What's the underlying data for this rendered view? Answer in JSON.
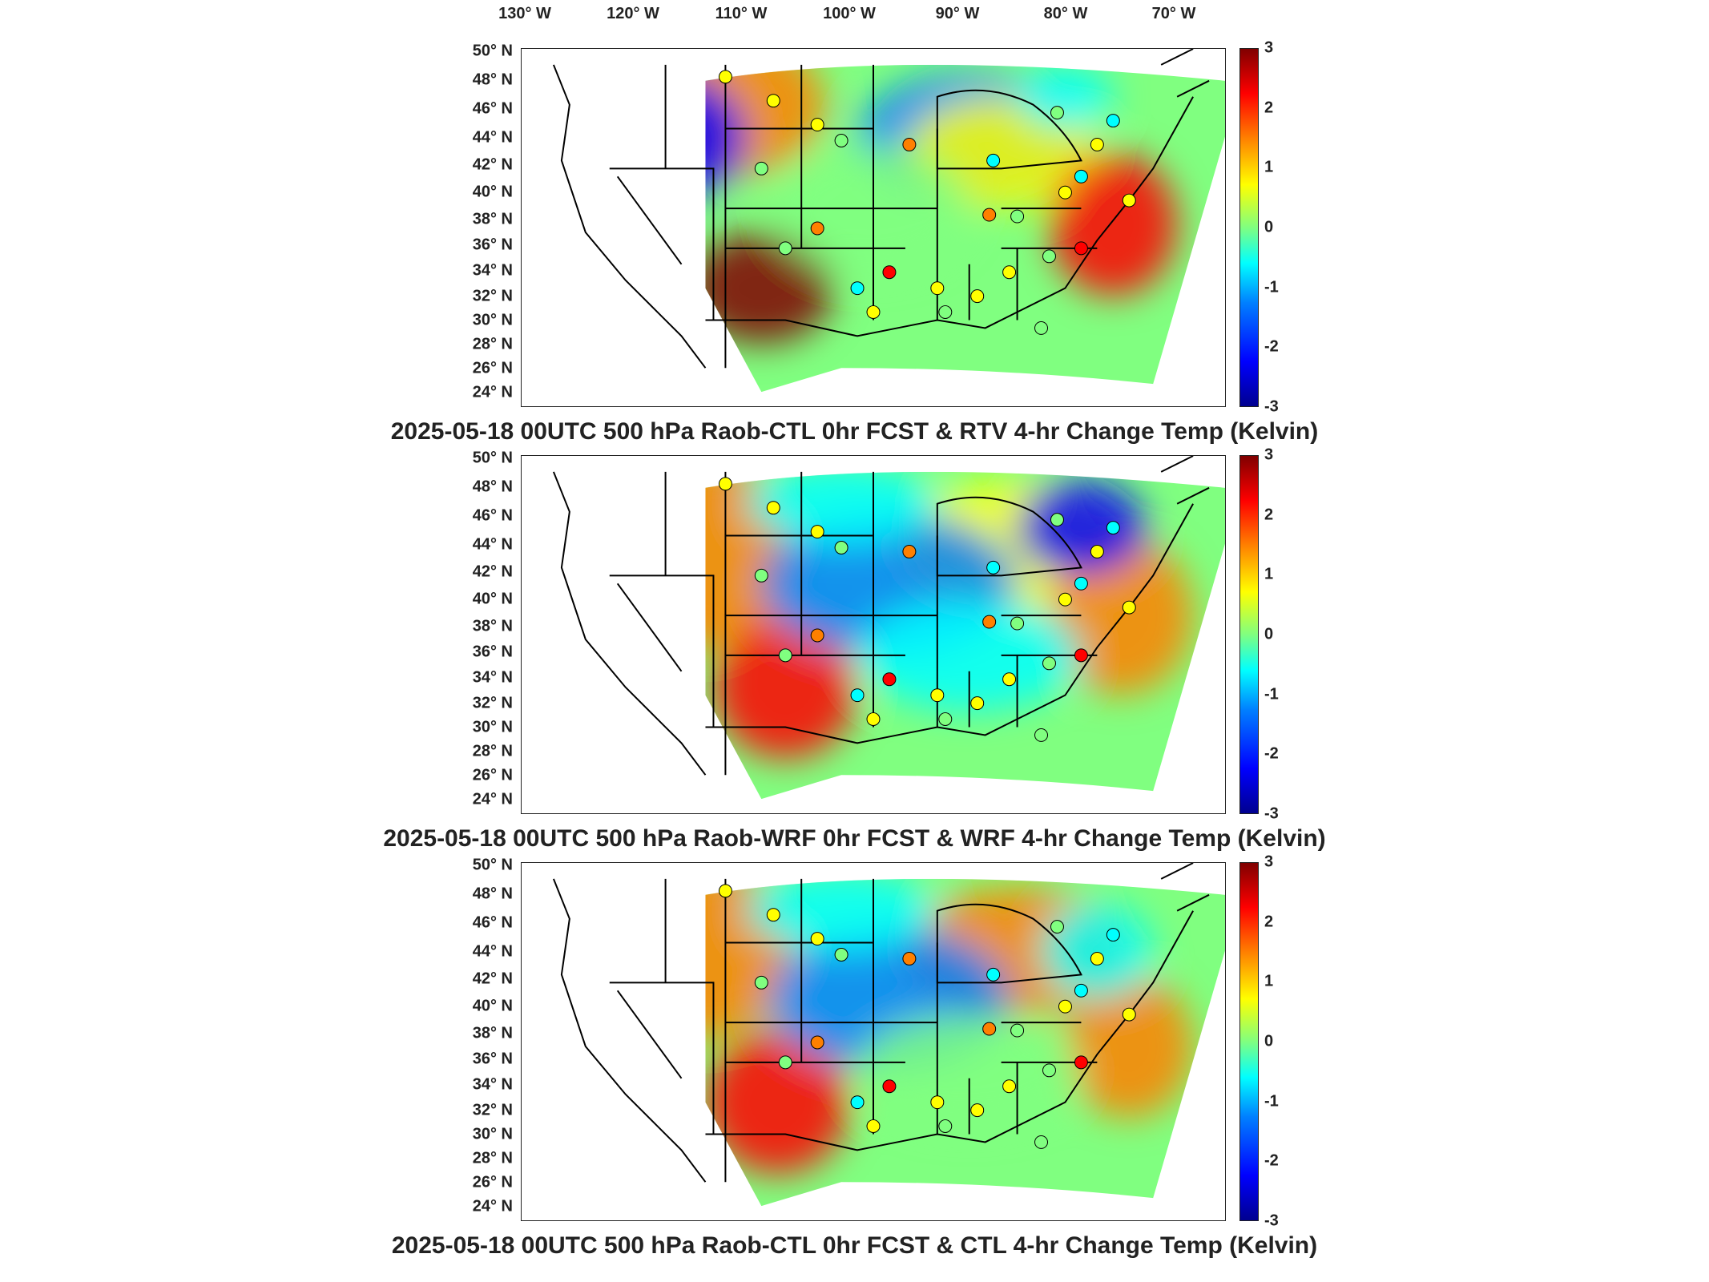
{
  "lon_labels": [
    "130° W",
    "120° W",
    "110° W",
    "100° W",
    "90° W",
    "80° W",
    "70° W"
  ],
  "lat_labels": [
    "50° N",
    "48° N",
    "46° N",
    "44° N",
    "42° N",
    "40° N",
    "38° N",
    "36° N",
    "34° N",
    "32° N",
    "30° N",
    "28° N",
    "26° N",
    "24° N"
  ],
  "colorbar": {
    "min": -3,
    "max": 3,
    "ticks": [
      "3",
      "2",
      "1",
      "0",
      "-1",
      "-2",
      "-3"
    ],
    "colormap": [
      "#00008f",
      "#0000ff",
      "#0080ff",
      "#00ffff",
      "#80ff80",
      "#ffff00",
      "#ff8000",
      "#ff0000",
      "#800000"
    ]
  },
  "panels": [
    {
      "title": "2025-05-18 00UTC 500 hPa Raob-CTL 0hr FCST & RTV 4-hr Change Temp (Kelvin)"
    },
    {
      "title": "2025-05-18 00UTC 500 hPa Raob-WRF 0hr FCST & WRF 4-hr Change Temp (Kelvin)"
    },
    {
      "title": "2025-05-18 00UTC 500 hPa Raob-CTL 0hr FCST & CTL 4-hr Change Temp (Kelvin)"
    }
  ]
}
